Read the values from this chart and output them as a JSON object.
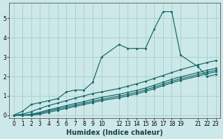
{
  "title": "",
  "xlabel": "Humidex (Indice chaleur)",
  "ylabel": "",
  "bg_color": "#cce8e8",
  "grid_color": "#aacccc",
  "line_color": "#1a6b6b",
  "xlim": [
    -0.5,
    23.5
  ],
  "ylim": [
    -0.15,
    5.8
  ],
  "xtick_positions": [
    0,
    1,
    2,
    3,
    4,
    5,
    6,
    7,
    8,
    9,
    10,
    12,
    13,
    14,
    15,
    16,
    17,
    18,
    19,
    21,
    22,
    23
  ],
  "xtick_labels": [
    "0",
    "1",
    "2",
    "3",
    "4",
    "5",
    "6",
    "7",
    "8",
    "9",
    "10",
    "12",
    "13",
    "14",
    "15",
    "16",
    "17",
    "18",
    "19",
    "21",
    "22",
    "23"
  ],
  "yticks": [
    0,
    1,
    2,
    3,
    4,
    5
  ],
  "series": [
    {
      "x": [
        0,
        1,
        2,
        3,
        4,
        5,
        6,
        7,
        8,
        9,
        10,
        12,
        13,
        14,
        15,
        16,
        17,
        18,
        19,
        21,
        22,
        23
      ],
      "y": [
        0.0,
        0.2,
        0.55,
        0.65,
        0.75,
        0.85,
        1.2,
        1.3,
        1.3,
        1.7,
        3.0,
        3.65,
        3.45,
        3.45,
        3.45,
        4.45,
        5.35,
        5.35,
        3.1,
        2.5,
        2.0,
        2.1
      ]
    },
    {
      "x": [
        0,
        1,
        2,
        3,
        4,
        5,
        6,
        7,
        8,
        9,
        10,
        12,
        13,
        14,
        15,
        16,
        17,
        18,
        19,
        21,
        22,
        23
      ],
      "y": [
        0.0,
        0.05,
        0.18,
        0.35,
        0.5,
        0.62,
        0.75,
        0.88,
        1.0,
        1.12,
        1.2,
        1.38,
        1.5,
        1.62,
        1.75,
        1.9,
        2.05,
        2.2,
        2.35,
        2.6,
        2.72,
        2.82
      ]
    },
    {
      "x": [
        0,
        1,
        2,
        3,
        4,
        5,
        6,
        7,
        8,
        9,
        10,
        12,
        13,
        14,
        15,
        16,
        17,
        18,
        19,
        21,
        22,
        23
      ],
      "y": [
        0.0,
        0.0,
        0.05,
        0.15,
        0.28,
        0.38,
        0.5,
        0.6,
        0.7,
        0.82,
        0.92,
        1.08,
        1.18,
        1.28,
        1.4,
        1.55,
        1.7,
        1.85,
        1.98,
        2.2,
        2.32,
        2.42
      ]
    },
    {
      "x": [
        0,
        1,
        2,
        3,
        4,
        5,
        6,
        7,
        8,
        9,
        10,
        12,
        13,
        14,
        15,
        16,
        17,
        18,
        19,
        21,
        22,
        23
      ],
      "y": [
        0.0,
        0.0,
        0.02,
        0.1,
        0.22,
        0.32,
        0.42,
        0.52,
        0.62,
        0.72,
        0.82,
        0.98,
        1.08,
        1.18,
        1.3,
        1.45,
        1.6,
        1.75,
        1.88,
        2.1,
        2.22,
        2.32
      ]
    },
    {
      "x": [
        0,
        1,
        2,
        3,
        4,
        5,
        6,
        7,
        8,
        9,
        10,
        12,
        13,
        14,
        15,
        16,
        17,
        18,
        19,
        21,
        22,
        23
      ],
      "y": [
        0.0,
        0.0,
        0.0,
        0.05,
        0.15,
        0.25,
        0.35,
        0.45,
        0.55,
        0.65,
        0.75,
        0.9,
        1.0,
        1.1,
        1.22,
        1.37,
        1.52,
        1.67,
        1.8,
        2.02,
        2.14,
        2.24
      ]
    }
  ]
}
